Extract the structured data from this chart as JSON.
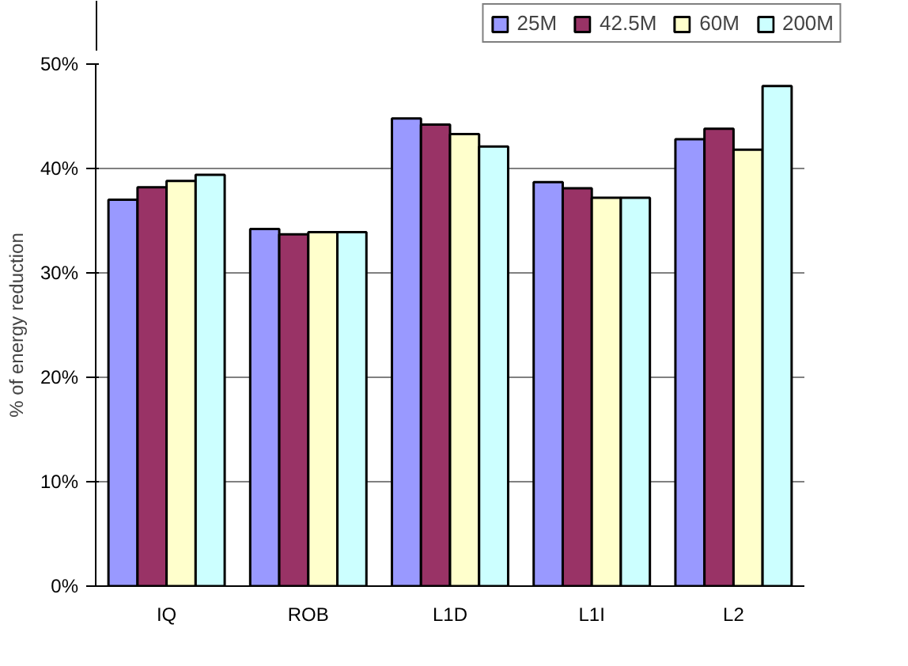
{
  "chart_data": {
    "type": "bar",
    "ylabel": "% of energy reduction",
    "categories": [
      "IQ",
      "ROB",
      "L1D",
      "L1I",
      "L2"
    ],
    "series": [
      {
        "name": "25M",
        "color": "#9999ff",
        "values": [
          37.0,
          34.2,
          44.8,
          38.7,
          42.8
        ]
      },
      {
        "name": "42.5M",
        "color": "#993366",
        "values": [
          38.2,
          33.7,
          44.2,
          38.1,
          43.8
        ]
      },
      {
        "name": "60M",
        "color": "#ffffcc",
        "values": [
          38.8,
          33.9,
          43.3,
          37.2,
          41.8
        ]
      },
      {
        "name": "200M",
        "color": "#ccffff",
        "values": [
          39.4,
          33.9,
          42.1,
          37.2,
          47.9
        ]
      }
    ],
    "ylim": [
      0,
      50
    ],
    "yticks": [
      {
        "value": 0,
        "label": "0%"
      },
      {
        "value": 10,
        "label": "10%"
      },
      {
        "value": 20,
        "label": "20%"
      },
      {
        "value": 30,
        "label": "30%"
      },
      {
        "value": 40,
        "label": "40%"
      },
      {
        "value": 50,
        "label": "50%"
      }
    ],
    "grid": "y",
    "legend": "top right"
  }
}
